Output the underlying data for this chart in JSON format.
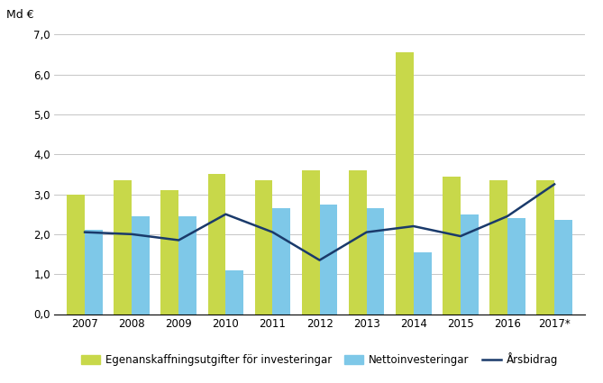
{
  "years": [
    "2007",
    "2008",
    "2009",
    "2010",
    "2011",
    "2012",
    "2013",
    "2014",
    "2015",
    "2016",
    "2017*"
  ],
  "egenanskaffning": [
    3.0,
    3.35,
    3.1,
    3.5,
    3.35,
    3.6,
    3.6,
    6.55,
    3.45,
    3.35,
    3.35
  ],
  "nettoinvesteringar": [
    2.1,
    2.45,
    2.45,
    1.1,
    2.65,
    2.75,
    2.65,
    1.55,
    2.5,
    2.4,
    2.35
  ],
  "arsbidrag": [
    2.05,
    2.0,
    1.85,
    2.5,
    2.05,
    1.35,
    2.05,
    2.2,
    1.95,
    2.45,
    3.25
  ],
  "bar_color_green": "#c8d84a",
  "bar_color_blue": "#7ec8e8",
  "line_color": "#1a3a6b",
  "ylabel": "Md €",
  "ylim": [
    0,
    7.0
  ],
  "yticks": [
    0.0,
    1.0,
    2.0,
    3.0,
    4.0,
    5.0,
    6.0,
    7.0
  ],
  "ytick_labels": [
    "0,0",
    "1,0",
    "2,0",
    "3,0",
    "4,0",
    "5,0",
    "6,0",
    "7,0"
  ],
  "legend_labels": [
    "Egenanskaffningsutgifter för investeringar",
    "Nettoinvesteringar",
    "Årsbidrag"
  ],
  "background_color": "#ffffff",
  "grid_color": "#bbbbbb",
  "bar_width": 0.38,
  "line_width": 1.8,
  "figsize": [
    6.69,
    4.25
  ],
  "dpi": 100
}
